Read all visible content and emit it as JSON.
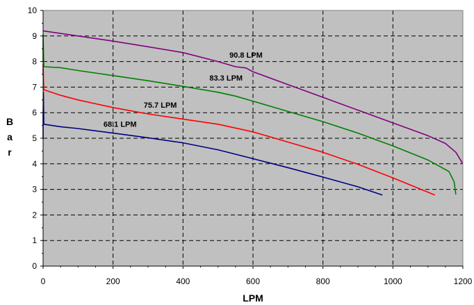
{
  "chart_data": {
    "type": "line",
    "title": "",
    "xlabel": "LPM",
    "ylabel": "Bar",
    "xlim": [
      0,
      1200
    ],
    "ylim": [
      0,
      10
    ],
    "xticks": [
      "0",
      "200",
      "400",
      "600",
      "800",
      "1000",
      "1200"
    ],
    "yticks": [
      "0",
      "1",
      "2",
      "3",
      "4",
      "5",
      "6",
      "7",
      "8",
      "9",
      "10"
    ],
    "grid": true,
    "plot_background": "#c0c0c0",
    "series": [
      {
        "name": "68.1 LPM",
        "color": "#000080",
        "x": [
          0,
          0,
          1,
          2,
          50,
          100,
          200,
          300,
          400,
          500,
          600,
          700,
          800,
          900,
          970
        ],
        "y": [
          5.0,
          5.9,
          6.8,
          5.55,
          5.45,
          5.38,
          5.2,
          5.02,
          4.82,
          4.55,
          4.2,
          3.85,
          3.48,
          3.1,
          2.78
        ]
      },
      {
        "name": "75.7 LPM",
        "color": "#ff0000",
        "x": [
          0,
          0,
          2,
          50,
          100,
          200,
          300,
          400,
          500,
          600,
          700,
          800,
          900,
          1000,
          1120
        ],
        "y": [
          7.5,
          7.9,
          6.9,
          6.68,
          6.5,
          6.2,
          5.95,
          5.75,
          5.55,
          5.25,
          4.85,
          4.45,
          3.98,
          3.45,
          2.78
        ]
      },
      {
        "name": "83.3 LPM",
        "color": "#008000",
        "x": [
          0,
          0,
          2,
          50,
          100,
          200,
          300,
          400,
          500,
          550,
          600,
          700,
          800,
          900,
          1000,
          1100,
          1160,
          1175,
          1180
        ],
        "y": [
          8.0,
          9.05,
          7.8,
          7.76,
          7.65,
          7.45,
          7.25,
          7.03,
          6.8,
          6.65,
          6.45,
          6.05,
          5.65,
          5.2,
          4.7,
          4.15,
          3.7,
          3.3,
          2.8
        ]
      },
      {
        "name": "90.8 LPM",
        "color": "#800080",
        "x": [
          0,
          100,
          200,
          300,
          400,
          500,
          550,
          580,
          600,
          700,
          800,
          900,
          1000,
          1100,
          1150,
          1180,
          1200
        ],
        "y": [
          9.2,
          9.0,
          8.8,
          8.58,
          8.35,
          8.0,
          7.8,
          7.75,
          7.6,
          7.1,
          6.6,
          6.1,
          5.6,
          5.1,
          4.8,
          4.45,
          4.0
        ]
      }
    ],
    "annotations": [
      {
        "text": "68.1 LPM",
        "x": 220,
        "y": 5.45
      },
      {
        "text": "75.7 LPM",
        "x": 335,
        "y": 6.2
      },
      {
        "text": "83.3 LPM",
        "x": 523,
        "y": 7.25
      },
      {
        "text": "90.8 LPM",
        "x": 580,
        "y": 8.15
      }
    ]
  }
}
